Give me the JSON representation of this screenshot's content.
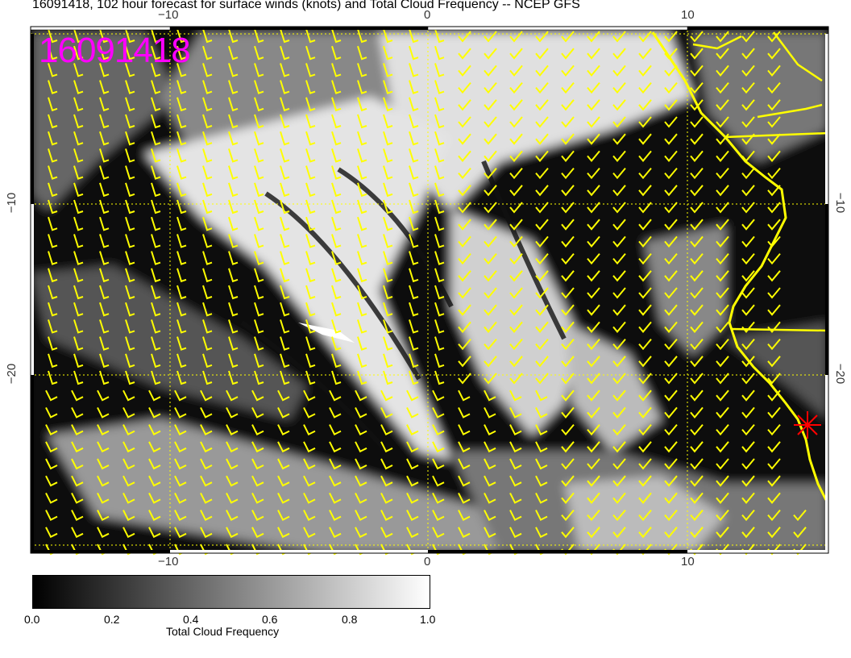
{
  "title": "16091418, 102 hour forecast for surface winds (knots) and Total Cloud Frequency -- NCEP GFS",
  "stamp": "16091418",
  "axes": {
    "lon_ticks": [
      "−10",
      "0",
      "10"
    ],
    "lat_ticks": [
      "−10",
      "−20"
    ]
  },
  "colorbar": {
    "label": "Total Cloud Frequency",
    "ticks": [
      "0.0",
      "0.2",
      "0.4",
      "0.6",
      "0.8",
      "1.0"
    ],
    "range": [
      0,
      1
    ],
    "colormap": "black-to-white grayscale"
  },
  "colors": {
    "wind_barbs": "#ffff00",
    "coastline": "#ffff00",
    "stamp": "#ff00ff",
    "marker": "#ff0000",
    "gridlines": "#ffff00"
  },
  "map": {
    "lon_range": [
      -15.4,
      15.5
    ],
    "lat_range": [
      -30.4,
      0.4
    ],
    "marker_icon": "red-star"
  }
}
